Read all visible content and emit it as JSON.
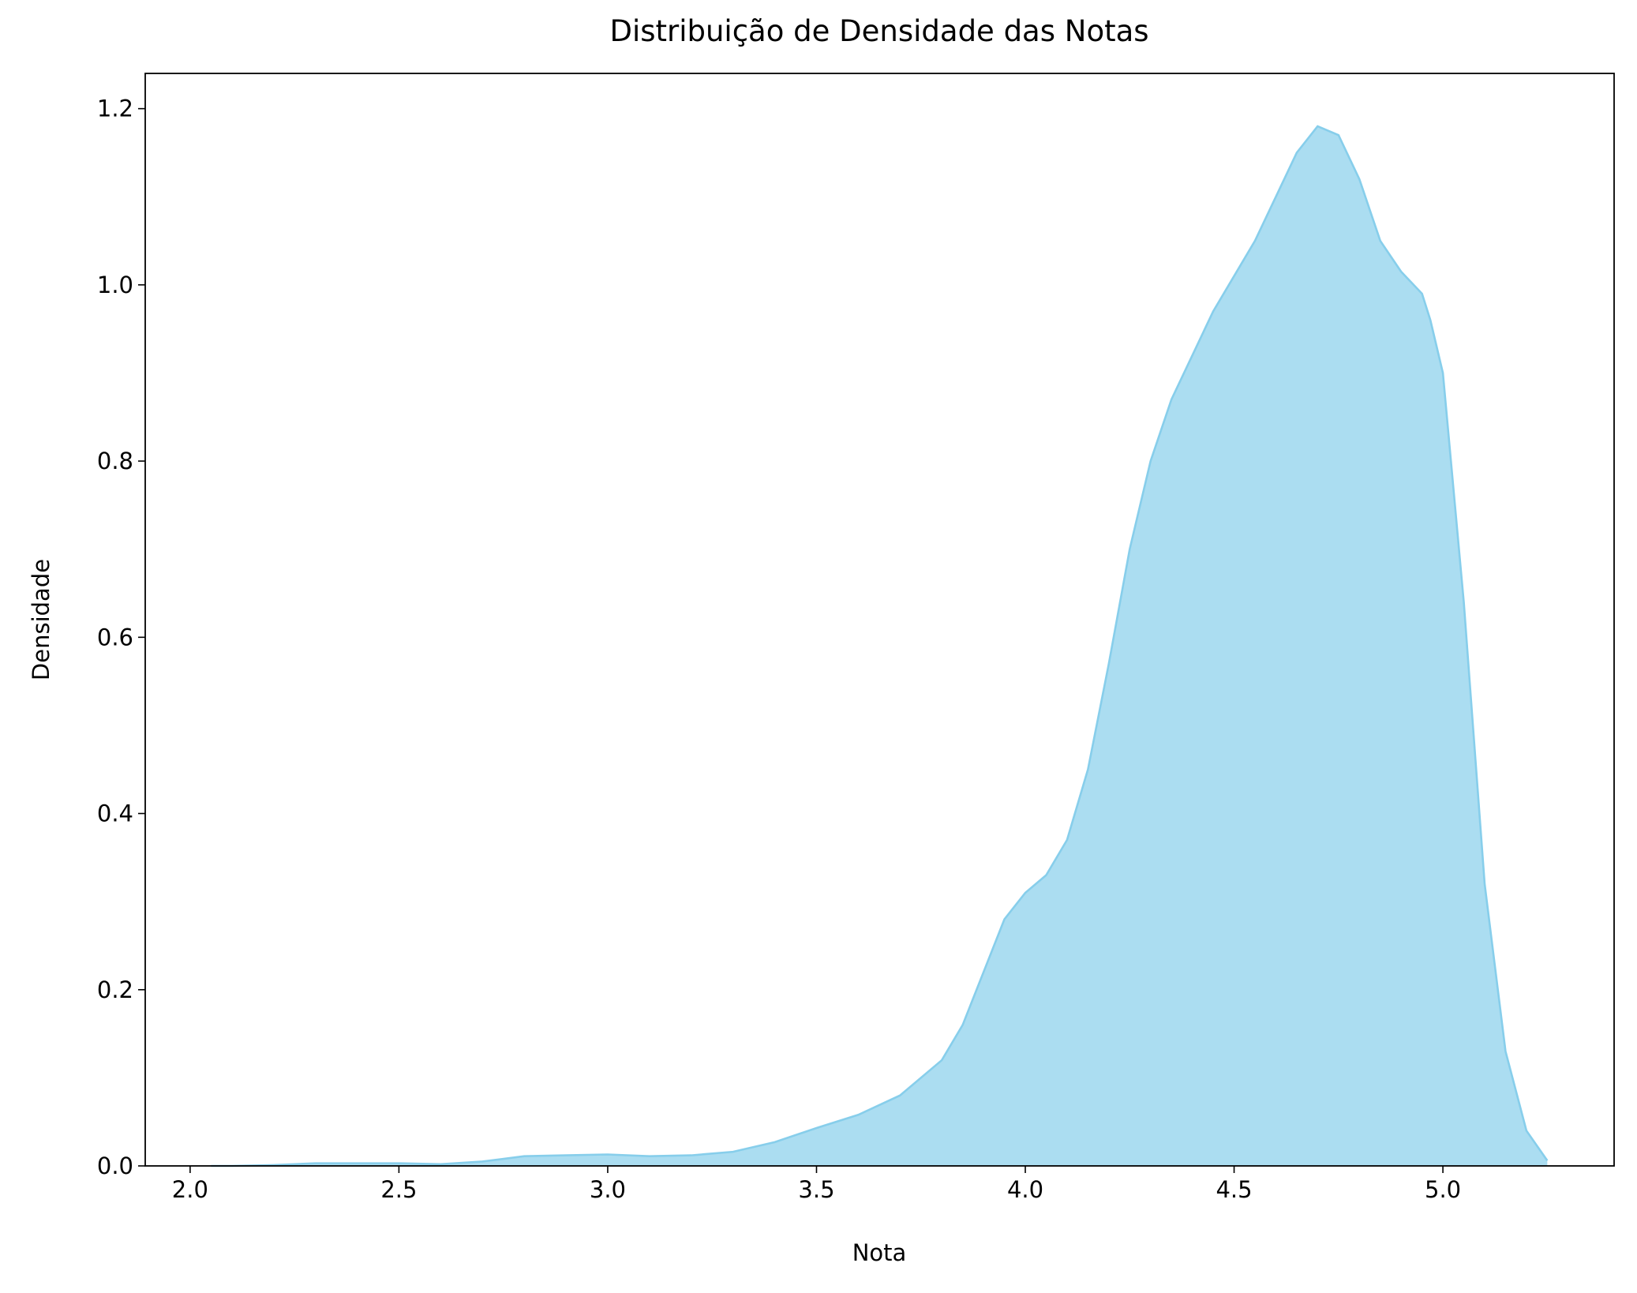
{
  "chart_data": {
    "type": "area",
    "title": "Distribuição de Densidade das Notas",
    "x_label": "Nota",
    "y_label": "Densidade",
    "x": [
      2.05,
      2.1,
      2.2,
      2.3,
      2.4,
      2.5,
      2.6,
      2.7,
      2.8,
      2.9,
      3.0,
      3.1,
      3.2,
      3.3,
      3.4,
      3.5,
      3.6,
      3.7,
      3.8,
      3.85,
      3.9,
      3.95,
      4.0,
      4.05,
      4.1,
      4.15,
      4.2,
      4.25,
      4.3,
      4.35,
      4.4,
      4.45,
      4.5,
      4.55,
      4.6,
      4.65,
      4.7,
      4.75,
      4.8,
      4.85,
      4.9,
      4.95,
      4.97,
      5.0,
      5.05,
      5.1,
      5.15,
      5.2,
      5.25
    ],
    "values": [
      0,
      0,
      0.001,
      0.003,
      0.003,
      0.003,
      0.002,
      0.005,
      0.011,
      0.012,
      0.013,
      0.011,
      0.012,
      0.016,
      0.027,
      0.043,
      0.058,
      0.08,
      0.12,
      0.16,
      0.22,
      0.28,
      0.31,
      0.33,
      0.37,
      0.45,
      0.57,
      0.7,
      0.8,
      0.87,
      0.92,
      0.97,
      1.01,
      1.05,
      1.1,
      1.15,
      1.18,
      1.17,
      1.12,
      1.05,
      1.015,
      0.99,
      0.96,
      0.9,
      0.64,
      0.32,
      0.13,
      0.04,
      0.006
    ],
    "color": "#87ceeb",
    "fill_opacity": 0.7,
    "xlim": [
      1.8925,
      5.41
    ],
    "ylim": [
      0,
      1.24
    ],
    "xticks": [
      {
        "value": 2,
        "label": "2.0"
      },
      2.5,
      {
        "value": 3,
        "label": "3.0"
      },
      3.5,
      {
        "value": 4,
        "label": "4.0"
      },
      4.5,
      {
        "value": 5,
        "label": "5.0"
      }
    ],
    "yticks": [
      {
        "value": 0,
        "label": "0.0"
      },
      0.2,
      0.4,
      0.6,
      0.8,
      {
        "value": 1,
        "label": "1.0"
      },
      1.2
    ]
  }
}
